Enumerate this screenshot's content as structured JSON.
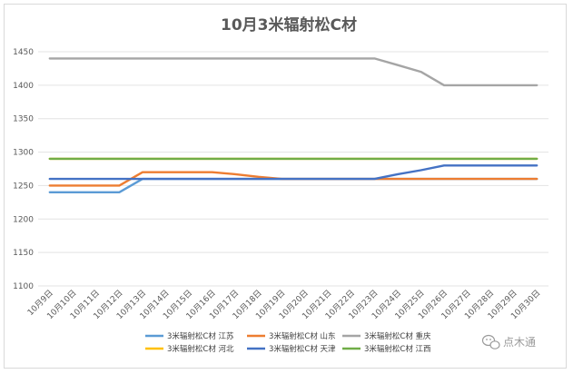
{
  "chart_data": {
    "type": "line",
    "title": "10月3米辐射松C材",
    "xlabel": "",
    "ylabel": "",
    "ylim": [
      1100,
      1450
    ],
    "yticks": [
      1100,
      1150,
      1200,
      1250,
      1300,
      1350,
      1400,
      1450
    ],
    "grid": true,
    "legend_position": "bottom",
    "categories": [
      "10月9日",
      "10月10日",
      "10月11日",
      "10月12日",
      "10月13日",
      "10月14日",
      "10月15日",
      "10月16日",
      "10月17日",
      "10月18日",
      "10月19日",
      "10月20日",
      "10月21日",
      "10月22日",
      "10月23日",
      "10月24日",
      "10月25日",
      "10月26日",
      "10月27日",
      "10月28日",
      "10月29日",
      "10月30日"
    ],
    "series": [
      {
        "name": "3米辐射松C材 江苏",
        "color": "#5b9bd5",
        "values": [
          1240,
          1240,
          1240,
          1240,
          1260,
          1260,
          1260,
          1260,
          1260,
          1260,
          1260,
          1260,
          1260,
          1260,
          1260,
          1260,
          1260,
          1260,
          1260,
          1260,
          1260,
          1260
        ]
      },
      {
        "name": "3米辐射松C材 山东",
        "color": "#ed7d31",
        "values": [
          1250,
          1250,
          1250,
          1250,
          1270,
          1270,
          1270,
          1270,
          1267,
          1263,
          1260,
          1260,
          1260,
          1260,
          1260,
          1260,
          1260,
          1260,
          1260,
          1260,
          1260,
          1260
        ]
      },
      {
        "name": "3米辐射松C材 重庆",
        "color": "#a5a5a5",
        "values": [
          1440,
          1440,
          1440,
          1440,
          1440,
          1440,
          1440,
          1440,
          1440,
          1440,
          1440,
          1440,
          1440,
          1440,
          1440,
          1430,
          1420,
          1400,
          1400,
          1400,
          1400,
          1400
        ]
      },
      {
        "name": "3米辐射松C材 河北",
        "color": "#ffc000",
        "values": [
          1290,
          1290,
          1290,
          1290,
          1290,
          1290,
          1290,
          1290,
          1290,
          1290,
          1290,
          1290,
          1290,
          1290,
          1290,
          1290,
          1290,
          1290,
          1290,
          1290,
          1290,
          1290
        ]
      },
      {
        "name": "3米辐射松C材 天津",
        "color": "#4472c4",
        "values": [
          1260,
          1260,
          1260,
          1260,
          1260,
          1260,
          1260,
          1260,
          1260,
          1260,
          1260,
          1260,
          1260,
          1260,
          1260,
          1267,
          1273,
          1280,
          1280,
          1280,
          1280,
          1280
        ]
      },
      {
        "name": "3米辐射松C材 江西",
        "color": "#70ad47",
        "values": [
          1290,
          1290,
          1290,
          1290,
          1290,
          1290,
          1290,
          1290,
          1290,
          1290,
          1290,
          1290,
          1290,
          1290,
          1290,
          1290,
          1290,
          1290,
          1290,
          1290,
          1290,
          1290
        ]
      }
    ]
  },
  "watermark": {
    "text": "点木通",
    "icon": "wechat-icon"
  }
}
